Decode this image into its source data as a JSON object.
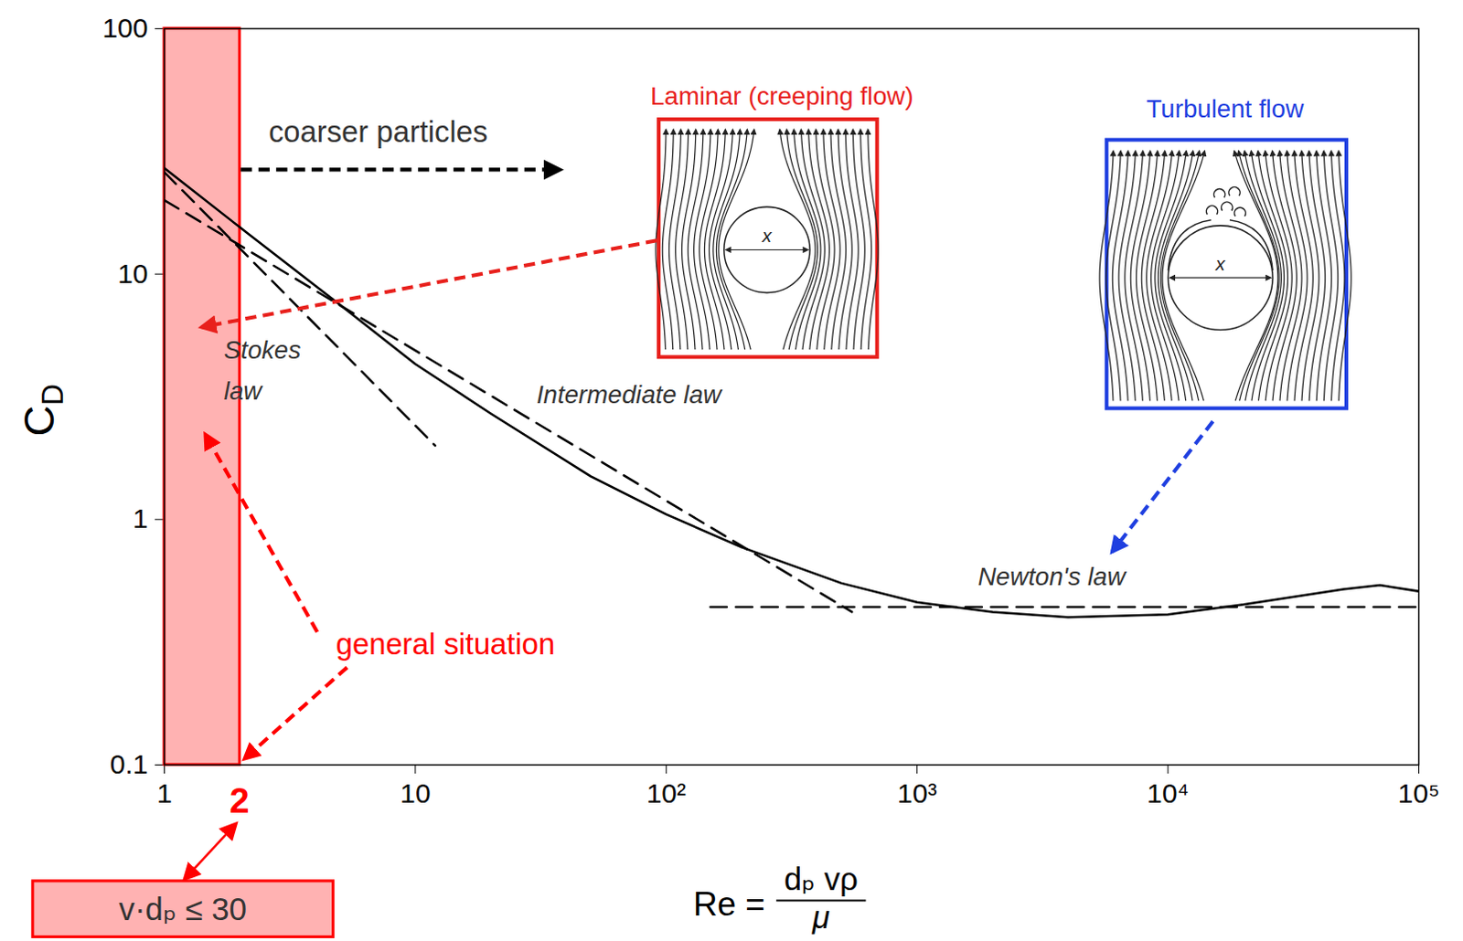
{
  "chart_data": {
    "type": "line",
    "log": true,
    "grid": false,
    "xlabel": {
      "lhs": "Re =",
      "numerator": "dₚ vρ",
      "denominator": "μ"
    },
    "ylabel": {
      "base": "C",
      "subscript": "D"
    },
    "xlim": [
      1,
      100000
    ],
    "ylim": [
      0.1,
      100
    ],
    "xticks": [
      1,
      10,
      {
        "value": 100,
        "label": "10²"
      },
      {
        "value": 1000,
        "label": "10³"
      },
      {
        "value": 10000,
        "label": "10⁴"
      },
      {
        "value": 100000,
        "label": "10⁵"
      }
    ],
    "yticks": [
      0.1,
      1,
      10,
      100
    ],
    "series": [
      {
        "color": "#000000",
        "line_style": "solid",
        "x": [
          1,
          2,
          5,
          10,
          20,
          50,
          100,
          200,
          500,
          1000,
          2000,
          4000,
          10000,
          20000,
          50000,
          70000,
          100000
        ],
        "values": [
          27,
          15.5,
          7.5,
          4.3,
          2.7,
          1.5,
          1.05,
          0.77,
          0.55,
          0.46,
          0.42,
          0.4,
          0.41,
          0.45,
          0.52,
          0.54,
          0.51
        ]
      },
      {
        "name": "Stokes law",
        "color": "#000000",
        "line_style": "dashed",
        "x": [
          1,
          12
        ],
        "values": [
          26,
          2
        ]
      },
      {
        "name": "Intermediate law",
        "color": "#000000",
        "line_style": "dashed",
        "x": [
          1,
          550
        ],
        "values": [
          20,
          0.42
        ]
      },
      {
        "name": "Newton's law",
        "color": "#000000",
        "line_style": "dashed",
        "x": [
          150,
          100000
        ],
        "values": [
          0.44,
          0.44
        ]
      }
    ],
    "highlight": {
      "x": [
        1,
        2
      ],
      "color": "#ff0000",
      "label": "general situation",
      "note": "v·dₚ ≤ 30"
    },
    "annotations": {
      "coarser": {
        "text": "coarser particles",
        "color": "#333333"
      },
      "laminar": {
        "text": "Laminar (creeping flow)",
        "color": "#e8201c"
      },
      "turbulent": {
        "text": "Turbulent flow",
        "color": "#1f3fe0"
      },
      "diameter": "x"
    }
  }
}
